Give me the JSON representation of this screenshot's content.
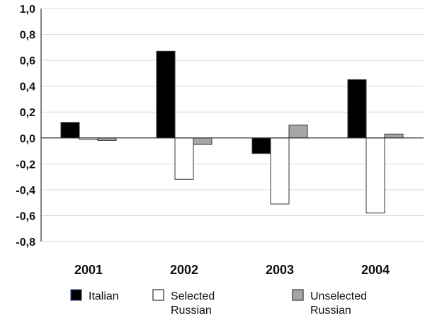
{
  "chart_data": {
    "type": "bar",
    "title": "",
    "xlabel": "",
    "ylabel": "",
    "categories": [
      "2001",
      "2002",
      "2003",
      "2004"
    ],
    "ylim": [
      -0.8,
      1.0
    ],
    "yticks": [
      1.0,
      0.8,
      0.6,
      0.4,
      0.2,
      0.0,
      -0.2,
      -0.4,
      -0.6,
      -0.8
    ],
    "ytick_labels": [
      "1,0",
      "0,8",
      "0,6",
      "0,4",
      "0,2",
      "0,0",
      "-0,2",
      "-0,4",
      "-0,6",
      "-0,8"
    ],
    "grid": true,
    "legend_position": "bottom",
    "series": [
      {
        "name": "Italian",
        "legend_lines": [
          "Italian"
        ],
        "color": "#000000",
        "values": [
          0.12,
          0.67,
          -0.12,
          0.45
        ]
      },
      {
        "name": "Selected Russian",
        "legend_lines": [
          "Selected",
          "Russian"
        ],
        "color": "#ffffff",
        "values": [
          -0.01,
          -0.32,
          -0.51,
          -0.58
        ]
      },
      {
        "name": "Unselected Russian",
        "legend_lines": [
          "Unselected",
          "Russian"
        ],
        "color": "#a6a6a6",
        "values": [
          -0.02,
          -0.05,
          0.1,
          0.03
        ]
      }
    ],
    "colors": {
      "grid": "#d9d9d9",
      "axis": "#333333",
      "bar_outline": "#333333",
      "legend_border_italian": "#3b4a8c"
    }
  }
}
